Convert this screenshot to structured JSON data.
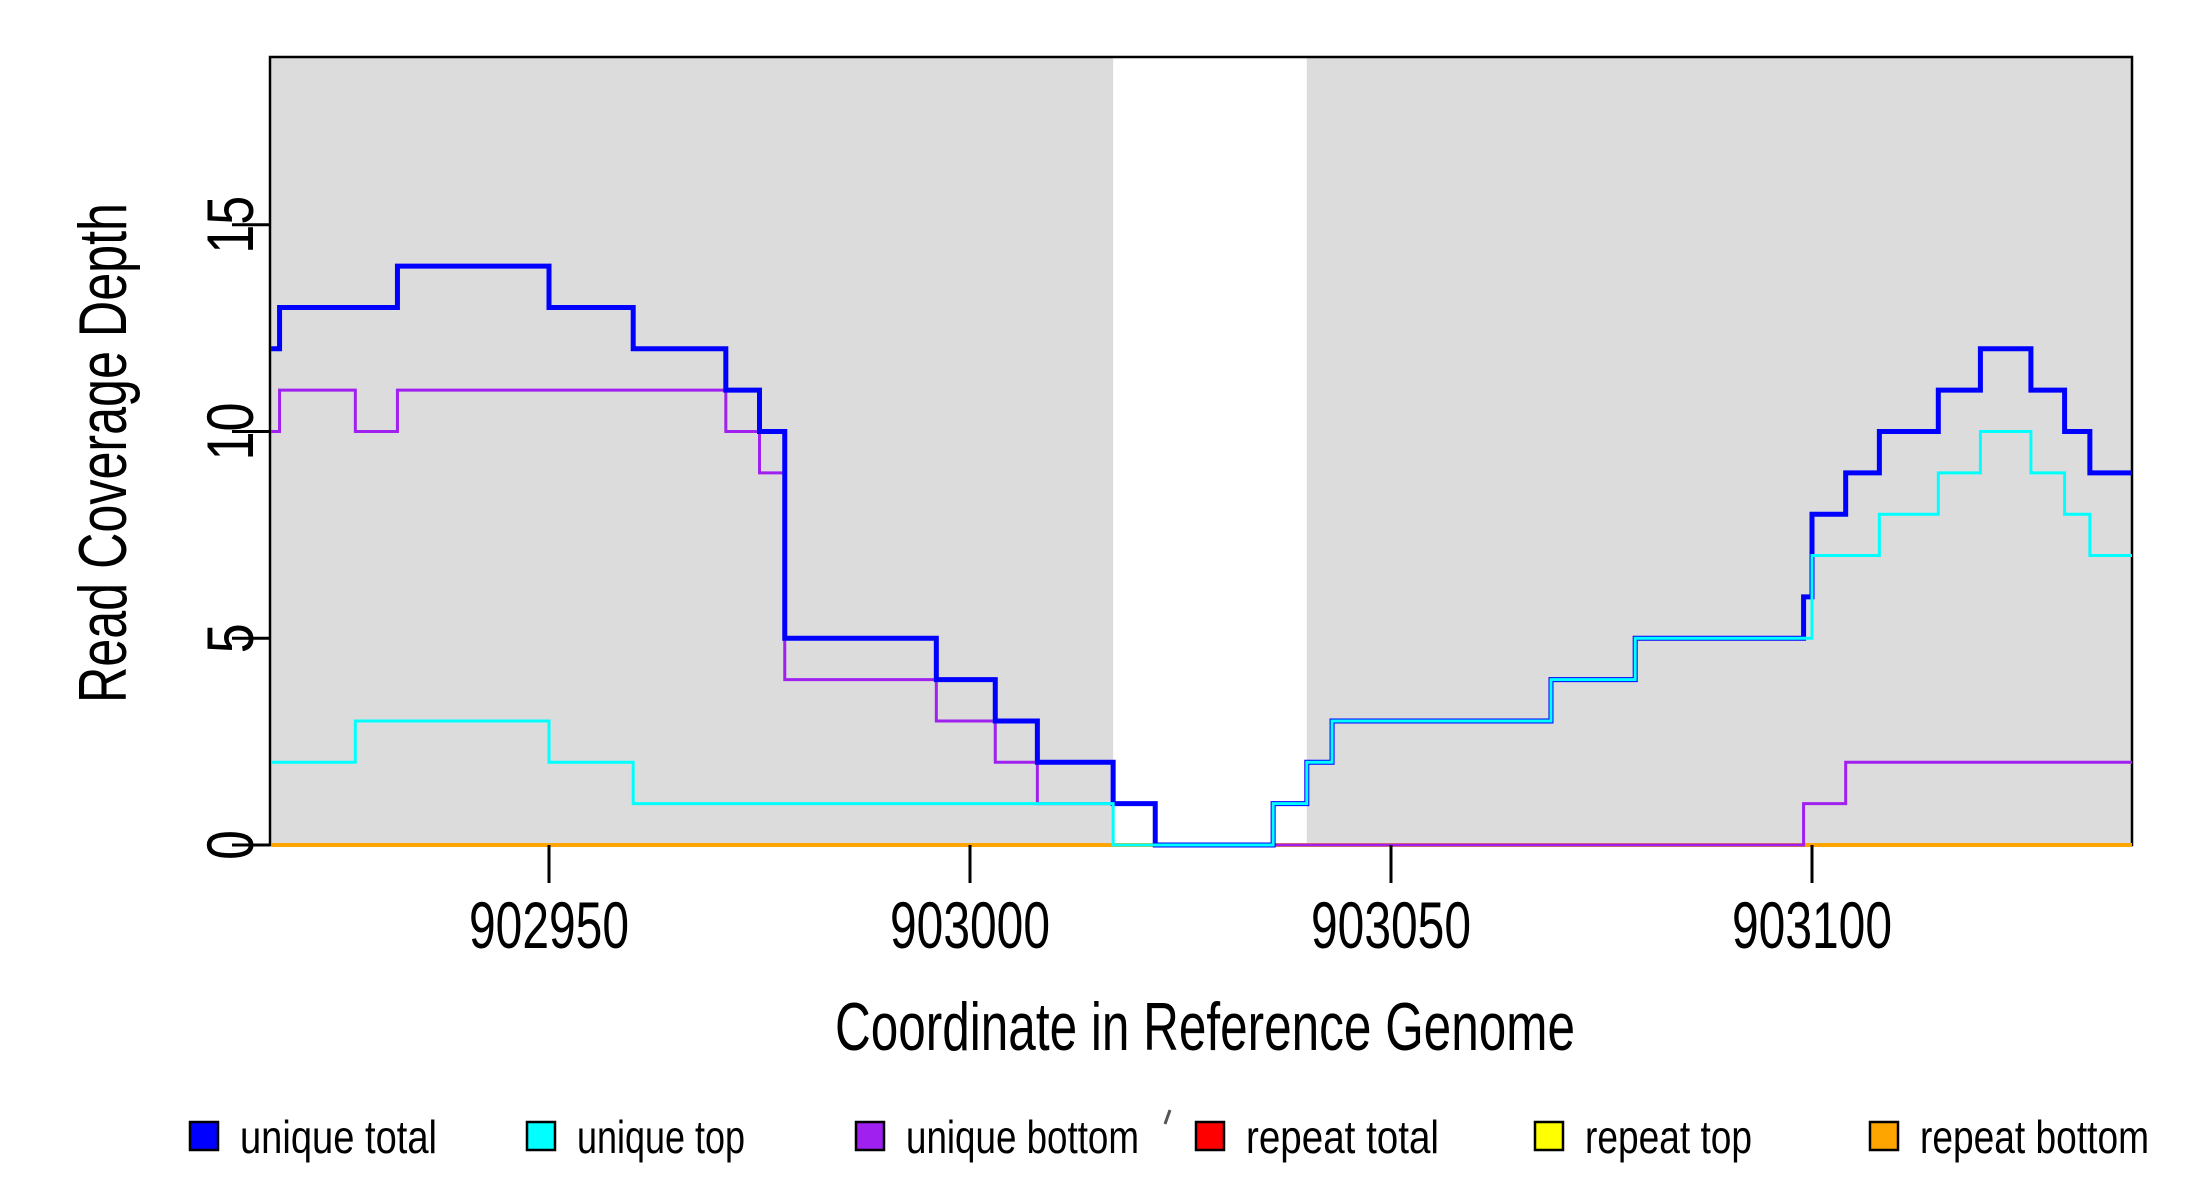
{
  "figure": {
    "background": "#FFFFFF",
    "box_color": "#000000",
    "tick_color": "#000000"
  },
  "chart_data": {
    "type": "line",
    "line_style": "step-post",
    "title": "",
    "xlabel": "Coordinate in Reference Genome",
    "ylabel": "Read Coverage Depth",
    "xlim": [
      902917,
      903138
    ],
    "ylim": [
      0,
      19
    ],
    "x_ticks": [
      "902950",
      "903000",
      "903050",
      "903100"
    ],
    "x_tick_values": [
      902950,
      903000,
      903050,
      903100
    ],
    "y_ticks": [
      "0",
      "5",
      "10",
      "15"
    ],
    "y_tick_values": [
      0,
      5,
      10,
      15
    ],
    "grid": false,
    "legend_position": "bottom",
    "shaded_regions": {
      "color": "#DCDCDC",
      "intervals": [
        [
          902917,
          903017
        ],
        [
          903040,
          903138
        ]
      ]
    },
    "render_order": [
      4,
      3,
      5,
      2,
      0,
      1
    ],
    "series": [
      {
        "name": "unique total",
        "color": "#0000FF",
        "line_width": 5,
        "x": [
          902917,
          902918,
          902932,
          902950,
          902960,
          902971,
          902975,
          902978,
          902996,
          903003,
          903008,
          903017,
          903022,
          903036,
          903040,
          903043,
          903069,
          903079,
          903099,
          903100,
          903104,
          903108,
          903115,
          903120,
          903126,
          903130,
          903133
        ],
        "y": [
          12,
          13,
          14,
          13,
          12,
          11,
          10,
          5,
          4,
          3,
          2,
          1,
          0,
          1,
          2,
          3,
          4,
          5,
          6,
          8,
          9,
          10,
          11,
          12,
          11,
          10,
          9
        ]
      },
      {
        "name": "unique top",
        "color": "#00FFFF",
        "line_width": 3,
        "x": [
          902917,
          902927,
          902950,
          902960,
          903017,
          903036,
          903040,
          903043,
          903069,
          903079,
          903100,
          903108,
          903115,
          903120,
          903126,
          903130,
          903133
        ],
        "y": [
          2,
          3,
          2,
          1,
          0,
          1,
          2,
          3,
          4,
          5,
          7,
          8,
          9,
          10,
          9,
          8,
          7
        ]
      },
      {
        "name": "unique bottom",
        "color": "#A020F0",
        "line_width": 3,
        "x": [
          902917,
          902918,
          902927,
          902932,
          902971,
          902975,
          902978,
          902996,
          903003,
          903008,
          903022,
          903099,
          903104
        ],
        "y": [
          10,
          11,
          10,
          11,
          10,
          9,
          4,
          3,
          2,
          1,
          0,
          1,
          2
        ]
      },
      {
        "name": "repeat total",
        "color": "#FF0000",
        "line_width": 3,
        "x": [
          902917
        ],
        "y": [
          0
        ]
      },
      {
        "name": "repeat top",
        "color": "#FFFF00",
        "line_width": 3,
        "x": [
          902917
        ],
        "y": [
          0
        ]
      },
      {
        "name": "repeat bottom",
        "color": "#FFA500",
        "line_width": 4,
        "x": [
          902917
        ],
        "y": [
          0
        ]
      }
    ]
  }
}
